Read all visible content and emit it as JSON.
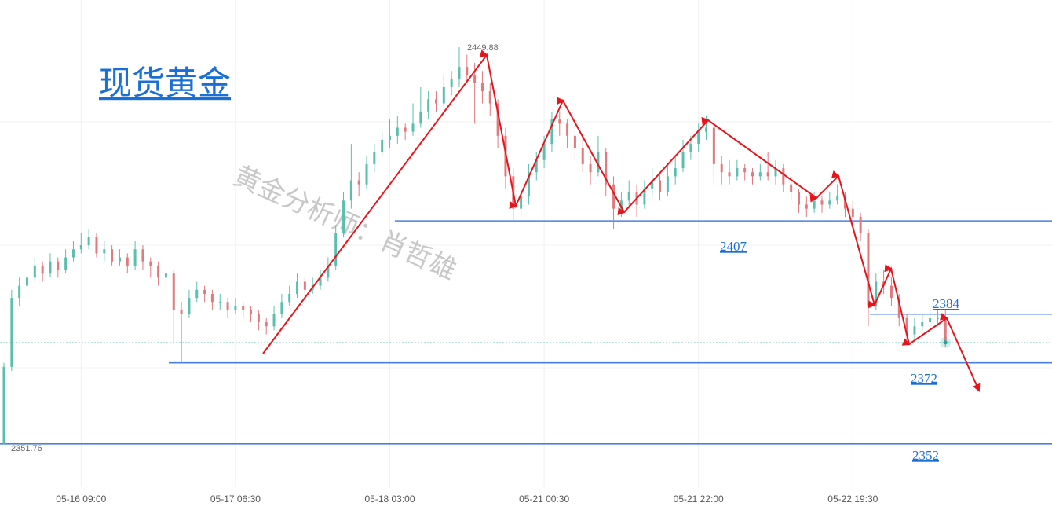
{
  "chart_data": {
    "type": "candlestick",
    "title": "现货黄金",
    "watermark": "黄金分析师：肖哲雄",
    "up_color": "#5cbfae",
    "down_color": "#e07a7f",
    "level_color": "#4a7fe0",
    "ylim": [
      2341.3,
      2461.5
    ],
    "categories": [
      null,
      null,
      null,
      null,
      null,
      null,
      null,
      null,
      null,
      null,
      "05-16 09:00",
      null,
      null,
      null,
      null,
      null,
      null,
      null,
      null,
      null,
      null,
      null,
      null,
      null,
      null,
      null,
      null,
      null,
      null,
      null,
      "05-17 06:30",
      null,
      null,
      null,
      null,
      null,
      null,
      null,
      null,
      null,
      null,
      null,
      null,
      null,
      null,
      null,
      null,
      null,
      null,
      null,
      "05-18 03:00",
      null,
      null,
      null,
      null,
      null,
      null,
      null,
      null,
      null,
      null,
      null,
      null,
      null,
      null,
      null,
      null,
      null,
      null,
      null,
      "05-21 00:30",
      null,
      null,
      null,
      null,
      null,
      null,
      null,
      null,
      null,
      null,
      null,
      null,
      null,
      null,
      null,
      null,
      null,
      null,
      null,
      "05-21 22:00",
      null,
      null,
      null,
      null,
      null,
      null,
      null,
      null,
      null,
      null,
      null,
      null,
      null,
      null,
      null,
      null,
      null,
      null,
      null,
      "05-22 19:30",
      null,
      null,
      null,
      null,
      null,
      null,
      null,
      null,
      null,
      null,
      null,
      null
    ],
    "candles": [
      [
        2352,
        2372,
        2351.76,
        2371
      ],
      [
        2371,
        2390,
        2370,
        2388
      ],
      [
        2388,
        2393,
        2386,
        2391
      ],
      [
        2391,
        2395,
        2389,
        2393
      ],
      [
        2393,
        2398,
        2392,
        2396
      ],
      [
        2396,
        2397,
        2392,
        2394
      ],
      [
        2394,
        2399,
        2393,
        2397
      ],
      [
        2397,
        2398,
        2393,
        2395
      ],
      [
        2395,
        2400,
        2394,
        2398
      ],
      [
        2398,
        2402,
        2397,
        2400
      ],
      [
        2400,
        2404,
        2399,
        2401
      ],
      [
        2401,
        2405,
        2400,
        2403
      ],
      [
        2403,
        2404,
        2398,
        2399
      ],
      [
        2399,
        2402,
        2397,
        2400
      ],
      [
        2400,
        2401,
        2396,
        2397
      ],
      [
        2397,
        2400,
        2396,
        2398
      ],
      [
        2398,
        2399,
        2394,
        2396
      ],
      [
        2396,
        2402,
        2395,
        2400
      ],
      [
        2400,
        2401,
        2395,
        2397
      ],
      [
        2397,
        2398,
        2393,
        2396
      ],
      [
        2396,
        2397,
        2391,
        2393
      ],
      [
        2393,
        2395,
        2390,
        2394
      ],
      [
        2394,
        2395,
        2377,
        2385
      ],
      [
        2385,
        2387,
        2372,
        2384
      ],
      [
        2384,
        2390,
        2383,
        2388
      ],
      [
        2388,
        2392,
        2387,
        2390
      ],
      [
        2390,
        2391,
        2387,
        2389
      ],
      [
        2389,
        2390,
        2385,
        2387
      ],
      [
        2387,
        2389,
        2385,
        2387
      ],
      [
        2387,
        2388,
        2383,
        2385
      ],
      [
        2385,
        2388,
        2384,
        2386
      ],
      [
        2386,
        2387,
        2383,
        2385
      ],
      [
        2385,
        2386,
        2382,
        2384
      ],
      [
        2384,
        2385,
        2380,
        2382
      ],
      [
        2382,
        2383,
        2379,
        2381
      ],
      [
        2381,
        2386,
        2380,
        2384
      ],
      [
        2384,
        2389,
        2383,
        2387
      ],
      [
        2387,
        2391,
        2386,
        2389
      ],
      [
        2389,
        2394,
        2388,
        2392
      ],
      [
        2392,
        2393,
        2388,
        2390
      ],
      [
        2390,
        2393,
        2389,
        2391
      ],
      [
        2391,
        2395,
        2390,
        2393
      ],
      [
        2393,
        2398,
        2392,
        2396
      ],
      [
        2396,
        2406,
        2395,
        2404
      ],
      [
        2404,
        2414,
        2403,
        2412
      ],
      [
        2412,
        2426,
        2410,
        2417
      ],
      [
        2417,
        2419,
        2413,
        2416
      ],
      [
        2416,
        2423,
        2415,
        2421
      ],
      [
        2421,
        2426,
        2419,
        2424
      ],
      [
        2424,
        2429,
        2423,
        2427
      ],
      [
        2427,
        2432,
        2425,
        2428
      ],
      [
        2428,
        2433,
        2426,
        2430
      ],
      [
        2430,
        2431,
        2427,
        2429
      ],
      [
        2429,
        2436,
        2428,
        2431
      ],
      [
        2431,
        2440,
        2430,
        2434
      ],
      [
        2434,
        2439,
        2432,
        2437
      ],
      [
        2437,
        2439,
        2434,
        2436
      ],
      [
        2436,
        2443,
        2435,
        2440
      ],
      [
        2440,
        2444,
        2438,
        2442
      ],
      [
        2442,
        2449.88,
        2440,
        2445
      ],
      [
        2445,
        2448,
        2441,
        2443
      ],
      [
        2443,
        2446,
        2431,
        2441
      ],
      [
        2441,
        2444,
        2436,
        2439
      ],
      [
        2439,
        2441,
        2433,
        2436
      ],
      [
        2436,
        2437,
        2425,
        2428
      ],
      [
        2428,
        2430,
        2415,
        2418
      ],
      [
        2418,
        2420,
        2407,
        2410
      ],
      [
        2410,
        2416,
        2408,
        2413
      ],
      [
        2413,
        2421,
        2411,
        2419
      ],
      [
        2419,
        2424,
        2417,
        2422
      ],
      [
        2422,
        2428,
        2420,
        2426
      ],
      [
        2426,
        2434,
        2424,
        2432
      ],
      [
        2432,
        2434,
        2428,
        2431
      ],
      [
        2431,
        2432,
        2425,
        2428
      ],
      [
        2428,
        2430,
        2422,
        2425
      ],
      [
        2425,
        2428,
        2419,
        2421
      ],
      [
        2421,
        2423,
        2416,
        2419
      ],
      [
        2419,
        2428,
        2418,
        2424
      ],
      [
        2424,
        2425,
        2413,
        2416
      ],
      [
        2416,
        2418,
        2405,
        2410
      ],
      [
        2410,
        2414,
        2408,
        2412
      ],
      [
        2412,
        2417,
        2410,
        2414
      ],
      [
        2414,
        2416,
        2408,
        2411
      ],
      [
        2411,
        2417,
        2410,
        2415
      ],
      [
        2415,
        2420,
        2413,
        2417
      ],
      [
        2417,
        2419,
        2412,
        2414
      ],
      [
        2414,
        2421,
        2413,
        2418
      ],
      [
        2418,
        2423,
        2416,
        2420
      ],
      [
        2420,
        2427,
        2419,
        2424
      ],
      [
        2424,
        2428,
        2422,
        2426
      ],
      [
        2426,
        2431,
        2424,
        2429
      ],
      [
        2429,
        2433,
        2427,
        2430
      ],
      [
        2430,
        2431,
        2416,
        2421
      ],
      [
        2421,
        2423,
        2416,
        2419
      ],
      [
        2419,
        2422,
        2416,
        2418
      ],
      [
        2418,
        2422,
        2417,
        2420
      ],
      [
        2420,
        2421,
        2417,
        2419
      ],
      [
        2419,
        2420,
        2416,
        2418
      ],
      [
        2418,
        2421,
        2417,
        2419
      ],
      [
        2419,
        2424,
        2417,
        2418
      ],
      [
        2418,
        2422,
        2416,
        2420
      ],
      [
        2420,
        2421,
        2414,
        2416
      ],
      [
        2416,
        2418,
        2412,
        2414
      ],
      [
        2414,
        2415,
        2409,
        2411
      ],
      [
        2411,
        2413,
        2408,
        2410
      ],
      [
        2410,
        2414,
        2409,
        2412
      ],
      [
        2412,
        2413,
        2409,
        2411
      ],
      [
        2411,
        2414,
        2410,
        2412
      ],
      [
        2412,
        2416,
        2411,
        2413
      ],
      [
        2413,
        2414,
        2408,
        2410
      ],
      [
        2410,
        2412,
        2406,
        2408
      ],
      [
        2408,
        2409,
        2402,
        2404
      ],
      [
        2404,
        2405,
        2381,
        2386
      ],
      [
        2386,
        2394,
        2385,
        2392
      ],
      [
        2392,
        2395,
        2389,
        2391
      ],
      [
        2391,
        2393,
        2386,
        2388
      ],
      [
        2388,
        2389,
        2381,
        2383
      ],
      [
        2383,
        2384,
        2377,
        2379
      ],
      [
        2379,
        2383,
        2378,
        2381
      ],
      [
        2381,
        2384,
        2380,
        2382
      ],
      [
        2382,
        2385,
        2381,
        2383
      ],
      [
        2383,
        2385,
        2381,
        2383
      ],
      [
        2383,
        2385,
        2376,
        2377
      ]
    ],
    "levels": [
      2407,
      2384,
      2372,
      2352
    ]
  }
}
